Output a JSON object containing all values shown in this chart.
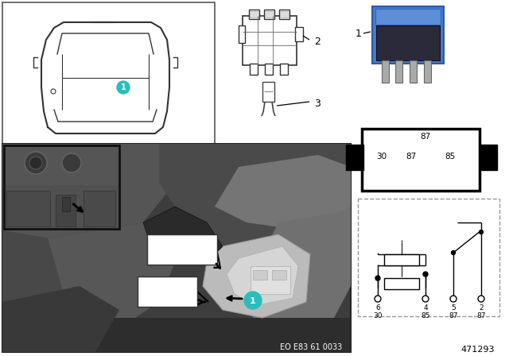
{
  "bg_color": "#ffffff",
  "fig_size": [
    6.4,
    4.48
  ],
  "dpi": 100,
  "part_number": "471293",
  "eo_code": "EO E83 61 0033",
  "teal_color": "#2BBDBD",
  "relay_blue": "#4A7BC4",
  "relay_blue2": "#5B8FD8",
  "relay_black": "#1a1a1a",
  "photo_dark": "#4a4a4a",
  "photo_mid": "#6a6a6a",
  "photo_light": "#8a8a8a",
  "photo_lighter": "#aaaaaa",
  "photo_bright": "#cccccc"
}
